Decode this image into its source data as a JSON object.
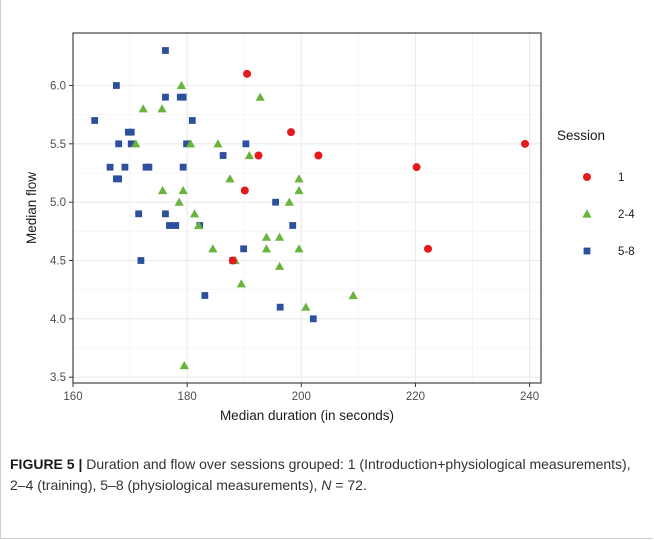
{
  "chart_data": {
    "type": "scatter",
    "xlabel": "Median duration (in seconds)",
    "ylabel": "Median flow",
    "xlim": [
      160,
      242
    ],
    "ylim": [
      3.45,
      6.45
    ],
    "xticks": [
      160,
      180,
      200,
      220,
      240
    ],
    "yticks": [
      3.5,
      4.0,
      4.5,
      5.0,
      5.5,
      6.0
    ],
    "xtick_labels": [
      "160",
      "180",
      "200",
      "220",
      "240"
    ],
    "ytick_labels": [
      "3.5",
      "4.0",
      "4.5",
      "5.0",
      "5.5",
      "6.0"
    ],
    "grid": true,
    "legend_title": "Session",
    "legend_position": "right",
    "series": [
      {
        "name": "1",
        "marker": "circle",
        "color": "#e41a1c",
        "points": [
          [
            190.5,
            6.1
          ],
          [
            198.2,
            5.6
          ],
          [
            192.5,
            5.4
          ],
          [
            203.0,
            5.4
          ],
          [
            239.2,
            5.5
          ],
          [
            220.2,
            5.3
          ],
          [
            190.1,
            5.1
          ],
          [
            222.2,
            4.6
          ],
          [
            188.0,
            4.5
          ]
        ]
      },
      {
        "name": "2-4",
        "marker": "triangle",
        "color": "#6ab43e",
        "points": [
          [
            179.0,
            6.0
          ],
          [
            192.8,
            5.9
          ],
          [
            172.3,
            5.8
          ],
          [
            175.6,
            5.8
          ],
          [
            171.0,
            5.5
          ],
          [
            180.6,
            5.5
          ],
          [
            185.4,
            5.5
          ],
          [
            190.9,
            5.4
          ],
          [
            187.5,
            5.2
          ],
          [
            199.6,
            5.2
          ],
          [
            175.7,
            5.1
          ],
          [
            179.3,
            5.1
          ],
          [
            199.6,
            5.1
          ],
          [
            178.6,
            5.0
          ],
          [
            197.9,
            5.0
          ],
          [
            181.3,
            4.9
          ],
          [
            182.0,
            4.8
          ],
          [
            193.9,
            4.7
          ],
          [
            196.2,
            4.7
          ],
          [
            184.5,
            4.6
          ],
          [
            193.9,
            4.6
          ],
          [
            199.6,
            4.6
          ],
          [
            188.4,
            4.5
          ],
          [
            196.2,
            4.45
          ],
          [
            189.5,
            4.3
          ],
          [
            209.1,
            4.2
          ],
          [
            200.8,
            4.1
          ],
          [
            179.5,
            3.6
          ]
        ]
      },
      {
        "name": "5-8",
        "marker": "square",
        "color": "#2d4f9e",
        "points": [
          [
            176.2,
            6.3
          ],
          [
            167.6,
            6.0
          ],
          [
            176.2,
            5.9
          ],
          [
            178.8,
            5.9
          ],
          [
            179.3,
            5.9
          ],
          [
            163.8,
            5.7
          ],
          [
            180.9,
            5.7
          ],
          [
            169.7,
            5.6
          ],
          [
            170.2,
            5.6
          ],
          [
            168.0,
            5.5
          ],
          [
            170.2,
            5.5
          ],
          [
            179.9,
            5.5
          ],
          [
            190.3,
            5.5
          ],
          [
            186.3,
            5.4
          ],
          [
            166.5,
            5.3
          ],
          [
            169.1,
            5.3
          ],
          [
            172.8,
            5.3
          ],
          [
            173.3,
            5.3
          ],
          [
            179.3,
            5.3
          ],
          [
            167.6,
            5.2
          ],
          [
            168.0,
            5.2
          ],
          [
            195.5,
            5.0
          ],
          [
            171.5,
            4.9
          ],
          [
            176.2,
            4.9
          ],
          [
            198.5,
            4.8
          ],
          [
            176.9,
            4.8
          ],
          [
            178.0,
            4.8
          ],
          [
            182.2,
            4.8
          ],
          [
            189.9,
            4.6
          ],
          [
            171.9,
            4.5
          ],
          [
            188.0,
            4.5
          ],
          [
            183.1,
            4.2
          ],
          [
            196.3,
            4.1
          ],
          [
            202.1,
            4.0
          ]
        ]
      }
    ]
  },
  "caption": {
    "label": "FIGURE 5 |",
    "text_before_n": " Duration and flow over sessions grouped: 1 (Introduction+physiological measurements), 2–4 (training), 5–8 (physiological measurements), ",
    "n_symbol": "N",
    "text_after_n": " = 72."
  },
  "colors": {
    "panel_background": "#ffffff",
    "panel_border": "#333333",
    "grid_major": "#ebebeb",
    "grid_minor": "#f5f5f5"
  }
}
